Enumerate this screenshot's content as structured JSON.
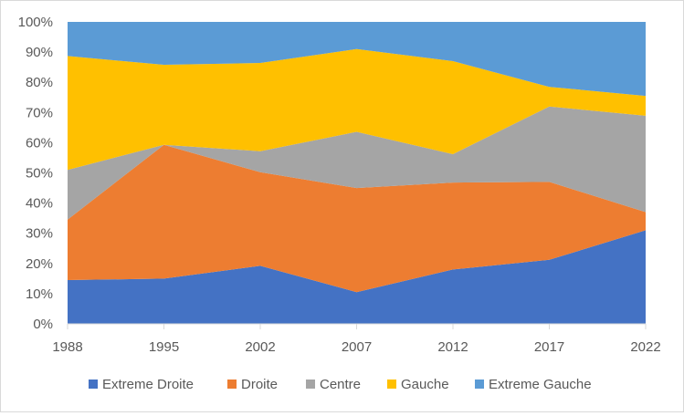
{
  "chart_data": {
    "type": "area",
    "stacked": true,
    "percent": true,
    "categories": [
      "1988",
      "1995",
      "2002",
      "2007",
      "2012",
      "2017",
      "2022"
    ],
    "series": [
      {
        "name": "Extreme Droite",
        "color": "#4472c4",
        "values": [
          14.5,
          15.0,
          19.2,
          10.5,
          18.0,
          21.2,
          31.0
        ]
      },
      {
        "name": "Droite",
        "color": "#ed7d31",
        "values": [
          20.0,
          44.3,
          31.0,
          34.5,
          28.8,
          25.8,
          6.0
        ]
      },
      {
        "name": "Centre",
        "color": "#a5a5a5",
        "values": [
          16.5,
          0,
          7.0,
          18.6,
          9.4,
          25.0,
          31.9
        ]
      },
      {
        "name": "Gauche",
        "color": "#ffc000",
        "values": [
          37.7,
          26.5,
          29.2,
          27.4,
          30.8,
          6.5,
          6.6
        ]
      },
      {
        "name": "Extreme Gauche",
        "color": "#5b9bd5",
        "values": [
          11.3,
          14.2,
          13.6,
          9.0,
          13.0,
          21.5,
          24.5
        ]
      }
    ],
    "y_ticks": [
      "0%",
      "10%",
      "20%",
      "30%",
      "40%",
      "50%",
      "60%",
      "70%",
      "80%",
      "90%",
      "100%"
    ],
    "ylim": [
      0,
      100
    ],
    "grid": false,
    "legend_position": "bottom"
  }
}
